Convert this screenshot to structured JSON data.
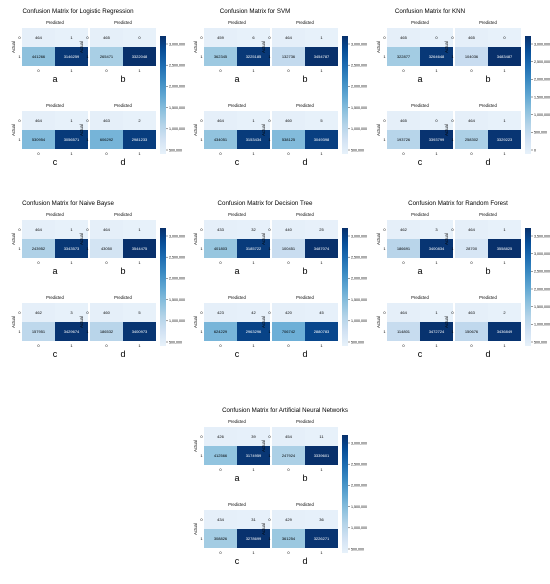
{
  "chart_data": [
    {
      "type": "heatmap",
      "title": "Confusion Matrix for Logistic Regression",
      "xlabel": "Predicted",
      "ylabel": "Actual",
      "tick_labels": [
        "0",
        "1"
      ],
      "colorbar_ticks": [
        "500,000",
        "1,000,000",
        "1,500,000",
        "2,000,000",
        "2,500,000",
        "3,000,000"
      ],
      "subplots": [
        {
          "letter": "a",
          "values": [
            [
              464,
              1
            ],
            [
              441266,
              3146259
            ]
          ]
        },
        {
          "letter": "b",
          "values": [
            [
              465,
              0
            ],
            [
              265471,
              3322048
            ]
          ]
        },
        {
          "letter": "c",
          "values": [
            [
              464,
              1
            ],
            [
              530954,
              3056571
            ]
          ]
        },
        {
          "letter": "d",
          "values": [
            [
              463,
              2
            ],
            [
              606292,
              2981233
            ]
          ]
        }
      ]
    },
    {
      "type": "heatmap",
      "title": "Confusion Matrix for SVM",
      "xlabel": "Predicted",
      "ylabel": "Actual",
      "tick_labels": [
        "0",
        "1"
      ],
      "colorbar_ticks": [
        "500,000",
        "1,000,000",
        "1,500,000",
        "2,000,000",
        "2,500,000",
        "3,000,000"
      ],
      "subplots": [
        {
          "letter": "a",
          "values": [
            [
              459,
              6
            ],
            [
              362345,
              3225185
            ]
          ]
        },
        {
          "letter": "b",
          "values": [
            [
              464,
              1
            ],
            [
              132736,
              3454787
            ]
          ]
        },
        {
          "letter": "c",
          "values": [
            [
              464,
              1
            ],
            [
              434051,
              3153434
            ]
          ]
        },
        {
          "letter": "d",
          "values": [
            [
              460,
              5
            ],
            [
              538125,
              3049398
            ]
          ]
        }
      ]
    },
    {
      "type": "heatmap",
      "title": "Confusion Matrix for KNN",
      "xlabel": "Predicted",
      "ylabel": "Actual",
      "tick_labels": [
        "0",
        "1"
      ],
      "colorbar_ticks": [
        "0",
        "500,000",
        "1,000,000",
        "1,500,000",
        "2,000,000",
        "2,500,000",
        "3,000,000"
      ],
      "subplots": [
        {
          "letter": "a",
          "values": [
            [
              465,
              0
            ],
            [
              322877,
              3264648
            ]
          ]
        },
        {
          "letter": "b",
          "values": [
            [
              465,
              0
            ],
            [
              104036,
              3483487
            ]
          ]
        },
        {
          "letter": "c",
          "values": [
            [
              465,
              0
            ],
            [
              193726,
              3393799
            ]
          ]
        },
        {
          "letter": "d",
          "values": [
            [
              464,
              1
            ],
            [
              258302,
              3329223
            ]
          ]
        }
      ]
    },
    {
      "type": "heatmap",
      "title": "Confusion Matrix for Naive Bayse",
      "xlabel": "Predicted",
      "ylabel": "Actual",
      "tick_labels": [
        "0",
        "1"
      ],
      "colorbar_ticks": [
        "500,000",
        "1,000,000",
        "1,500,000",
        "2,000,000",
        "2,500,000",
        "3,000,000"
      ],
      "subplots": [
        {
          "letter": "a",
          "values": [
            [
              464,
              1
            ],
            [
              243952,
              3343573
            ]
          ]
        },
        {
          "letter": "b",
          "values": [
            [
              464,
              1
            ],
            [
              43050,
              3544475
            ]
          ]
        },
        {
          "letter": "c",
          "values": [
            [
              462,
              3
            ],
            [
              157951,
              3429674
            ]
          ]
        },
        {
          "letter": "d",
          "values": [
            [
              460,
              5
            ],
            [
              186532,
              3400973
            ]
          ]
        }
      ]
    },
    {
      "type": "heatmap",
      "title": "Confusion Matrix for Decision Tree",
      "xlabel": "Predicted",
      "ylabel": "Actual",
      "tick_labels": [
        "0",
        "1"
      ],
      "colorbar_ticks": [
        "500,000",
        "1,000,000",
        "1,500,000",
        "2,000,000",
        "2,500,000",
        "3,000,000"
      ],
      "subplots": [
        {
          "letter": "a",
          "values": [
            [
              433,
              32
            ],
            [
              401803,
              3185722
            ]
          ]
        },
        {
          "letter": "b",
          "values": [
            [
              440,
              25
            ],
            [
              100451,
              3487074
            ]
          ]
        },
        {
          "letter": "c",
          "values": [
            [
              423,
              42
            ],
            [
              624229,
              2963296
            ]
          ]
        },
        {
          "letter": "d",
          "values": [
            [
              420,
              45
            ],
            [
              706742,
              2880783
            ]
          ]
        }
      ]
    },
    {
      "type": "heatmap",
      "title": "Confusion Matrix for Random Forest",
      "xlabel": "Predicted",
      "ylabel": "Actual",
      "tick_labels": [
        "0",
        "1"
      ],
      "colorbar_ticks": [
        "500,000",
        "1,000,000",
        "1,500,000",
        "2,000,000",
        "2,500,000",
        "3,000,000",
        "3,500,000"
      ],
      "subplots": [
        {
          "letter": "a",
          "values": [
            [
              462,
              3
            ],
            [
              186691,
              3400834
            ]
          ]
        },
        {
          "letter": "b",
          "values": [
            [
              464,
              1
            ],
            [
              28700,
              3558825
            ]
          ]
        },
        {
          "letter": "c",
          "values": [
            [
              464,
              1
            ],
            [
              114801,
              3472724
            ]
          ]
        },
        {
          "letter": "d",
          "values": [
            [
              463,
              2
            ],
            [
              150676,
              3436849
            ]
          ]
        }
      ]
    },
    {
      "type": "heatmap",
      "title": "Confusion Matrix for Artificial Neural Networks",
      "xlabel": "Predicted",
      "ylabel": "Actual",
      "tick_labels": [
        "0",
        "1"
      ],
      "colorbar_ticks": [
        "500,000",
        "1,000,000",
        "1,500,000",
        "2,000,000",
        "2,500,000",
        "3,000,000"
      ],
      "subplots": [
        {
          "letter": "a",
          "values": [
            [
              426,
              39
            ],
            [
              412566,
              3174959
            ]
          ]
        },
        {
          "letter": "b",
          "values": [
            [
              454,
              11
            ],
            [
              247924,
              3339601
            ]
          ]
        },
        {
          "letter": "c",
          "values": [
            [
              434,
              31
            ],
            [
              308826,
              3278699
            ]
          ]
        },
        {
          "letter": "d",
          "values": [
            [
              429,
              36
            ],
            [
              361254,
              3226271
            ]
          ]
        }
      ]
    }
  ]
}
